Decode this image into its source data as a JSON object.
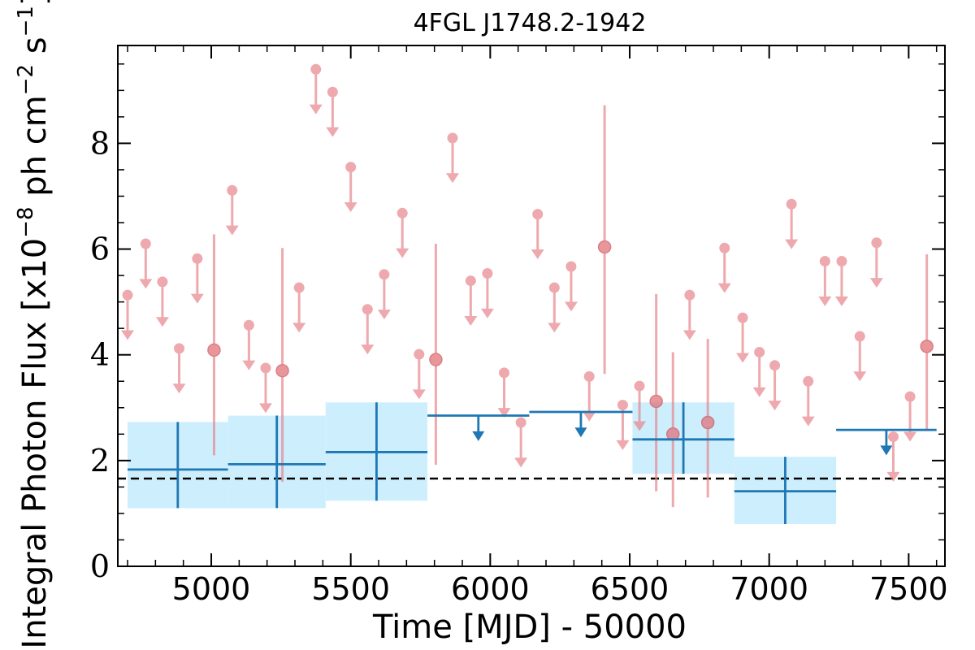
{
  "chart_data": {
    "type": "scatter",
    "title": "4FGL J1748.2-1942",
    "xlabel": "Time [MJD] - 50000",
    "ylabel": "Integral Photon Flux [x10^-8 ph cm^-2 s^-1]",
    "ylabel_parts": {
      "base": "Integral Photon Flux [x10",
      "exp1": "−8",
      "mid": " ph cm",
      "exp2": "−2",
      "mid2": " s",
      "exp3": "−1",
      "end": "]"
    },
    "xlim": [
      4665,
      7630
    ],
    "ylim": [
      0,
      9.85
    ],
    "xticks": [
      {
        "value": 5000,
        "label": "5000"
      },
      {
        "value": 5500,
        "label": "5500"
      },
      {
        "value": 6000,
        "label": "6000"
      },
      {
        "value": 6500,
        "label": "6500"
      },
      {
        "value": 7000,
        "label": "7000"
      },
      {
        "value": 7500,
        "label": "7500"
      }
    ],
    "yticks": [
      {
        "value": 0,
        "label": "0"
      },
      {
        "value": 2,
        "label": "2"
      },
      {
        "value": 4,
        "label": "4"
      },
      {
        "value": 6,
        "label": "6"
      },
      {
        "value": 8,
        "label": "8"
      }
    ],
    "x_minor_step": 100,
    "y_minor_step": 0.5,
    "reference_level": 1.66,
    "short_bins": {
      "name": "",
      "color": "#e8868c",
      "upper_limits": [
        {
          "x": 4700,
          "y": 5.13
        },
        {
          "x": 4765,
          "y": 6.1
        },
        {
          "x": 4825,
          "y": 5.38
        },
        {
          "x": 4885,
          "y": 4.12
        },
        {
          "x": 4950,
          "y": 5.82
        },
        {
          "x": 5075,
          "y": 7.11
        },
        {
          "x": 5135,
          "y": 4.56
        },
        {
          "x": 5195,
          "y": 3.75
        },
        {
          "x": 5315,
          "y": 5.27
        },
        {
          "x": 5375,
          "y": 9.4
        },
        {
          "x": 5435,
          "y": 8.97
        },
        {
          "x": 5500,
          "y": 7.55
        },
        {
          "x": 5560,
          "y": 4.86
        },
        {
          "x": 5620,
          "y": 5.52
        },
        {
          "x": 5685,
          "y": 6.68
        },
        {
          "x": 5745,
          "y": 4.01
        },
        {
          "x": 5865,
          "y": 8.1
        },
        {
          "x": 5930,
          "y": 5.4
        },
        {
          "x": 5990,
          "y": 5.54
        },
        {
          "x": 6050,
          "y": 3.66
        },
        {
          "x": 6110,
          "y": 2.72
        },
        {
          "x": 6170,
          "y": 6.66
        },
        {
          "x": 6230,
          "y": 5.27
        },
        {
          "x": 6290,
          "y": 5.67
        },
        {
          "x": 6355,
          "y": 3.59
        },
        {
          "x": 6475,
          "y": 3.05
        },
        {
          "x": 6535,
          "y": 3.41
        },
        {
          "x": 6715,
          "y": 5.13
        },
        {
          "x": 6840,
          "y": 6.02
        },
        {
          "x": 6905,
          "y": 4.7
        },
        {
          "x": 6965,
          "y": 4.05
        },
        {
          "x": 7020,
          "y": 3.8
        },
        {
          "x": 7080,
          "y": 6.85
        },
        {
          "x": 7140,
          "y": 3.5
        },
        {
          "x": 7200,
          "y": 5.77
        },
        {
          "x": 7260,
          "y": 5.77
        },
        {
          "x": 7325,
          "y": 4.35
        },
        {
          "x": 7385,
          "y": 6.12
        },
        {
          "x": 7445,
          "y": 2.45
        },
        {
          "x": 7505,
          "y": 3.21
        }
      ],
      "detections": [
        {
          "x": 5010,
          "y": 4.09,
          "y_low": 2.1,
          "y_high": 6.28
        },
        {
          "x": 5255,
          "y": 3.7,
          "y_low": 1.6,
          "y_high": 6.02
        },
        {
          "x": 5805,
          "y": 3.91,
          "y_low": 1.92,
          "y_high": 6.1
        },
        {
          "x": 6410,
          "y": 6.04,
          "y_low": 3.64,
          "y_high": 8.72
        },
        {
          "x": 6595,
          "y": 3.12,
          "y_low": 1.42,
          "y_high": 5.15
        },
        {
          "x": 6655,
          "y": 2.5,
          "y_low": 1.12,
          "y_high": 4.05
        },
        {
          "x": 6780,
          "y": 2.72,
          "y_low": 1.3,
          "y_high": 4.3
        },
        {
          "x": 7565,
          "y": 4.16,
          "y_low": 2.56,
          "y_high": 5.9
        }
      ]
    },
    "long_bins": {
      "name": "",
      "color": "#1f77b4",
      "band_color": "#cdeefd",
      "detections": [
        {
          "x_start": 4700,
          "x_end": 5060,
          "y": 1.83,
          "y_low": 1.1,
          "y_high": 2.73
        },
        {
          "x_start": 5060,
          "x_end": 5410,
          "y": 1.93,
          "y_low": 1.1,
          "y_high": 2.85
        },
        {
          "x_start": 5410,
          "x_end": 5775,
          "y": 2.16,
          "y_low": 1.24,
          "y_high": 3.1
        },
        {
          "x_start": 6510,
          "x_end": 6875,
          "y": 2.4,
          "y_low": 1.75,
          "y_high": 3.1
        },
        {
          "x_start": 6875,
          "x_end": 7240,
          "y": 1.42,
          "y_low": 0.8,
          "y_high": 2.07
        }
      ],
      "upper_limits": [
        {
          "x_start": 5775,
          "x_end": 6140,
          "y": 2.85
        },
        {
          "x_start": 6140,
          "x_end": 6510,
          "y": 2.92
        },
        {
          "x_start": 7240,
          "x_end": 7600,
          "y": 2.58
        }
      ]
    }
  }
}
